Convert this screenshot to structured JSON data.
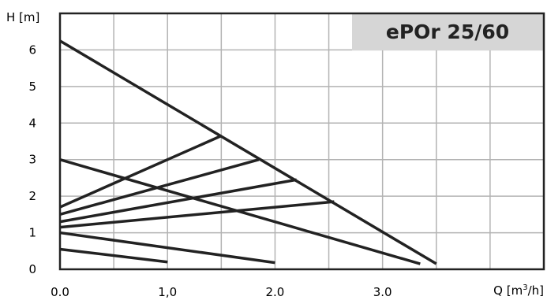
{
  "chart_data": {
    "type": "line",
    "title": "ePOr 25/60",
    "xlabel": "Q [m",
    "xlabel_sup": "3",
    "xlabel_suffix": "/h]",
    "ylabel": "H [m]",
    "xlim": [
      0,
      4.5
    ],
    "ylim": [
      0,
      7
    ],
    "x_tick_values": [
      0,
      1,
      2,
      3
    ],
    "x_tick_labels": [
      "0.0",
      "1,0",
      "2.0",
      "3.0"
    ],
    "y_tick_values": [
      0,
      1,
      2,
      3,
      4,
      5,
      6
    ],
    "y_tick_labels": [
      "0",
      "1",
      "2",
      "3",
      "4",
      "5",
      "6"
    ],
    "grid": true,
    "grid_x_step": 0.5,
    "grid_y_step": 1,
    "colors": {
      "curve": "#222222",
      "grid": "#b3b3b3",
      "title_box": "#d6d6d6"
    },
    "series": [
      {
        "x": [
          0,
          3.5
        ],
        "y": [
          6.25,
          0.15
        ]
      },
      {
        "x": [
          0,
          3.35
        ],
        "y": [
          3.0,
          0.15
        ]
      },
      {
        "x": [
          0,
          1.5
        ],
        "y": [
          1.7,
          3.65
        ]
      },
      {
        "x": [
          0,
          1.85
        ],
        "y": [
          1.5,
          3.0
        ]
      },
      {
        "x": [
          0,
          2.2
        ],
        "y": [
          1.3,
          2.45
        ]
      },
      {
        "x": [
          0,
          2.55
        ],
        "y": [
          1.15,
          1.85
        ]
      },
      {
        "x": [
          0,
          2.0
        ],
        "y": [
          1.0,
          0.18
        ]
      },
      {
        "x": [
          0,
          1.0
        ],
        "y": [
          0.55,
          0.2
        ]
      }
    ]
  }
}
